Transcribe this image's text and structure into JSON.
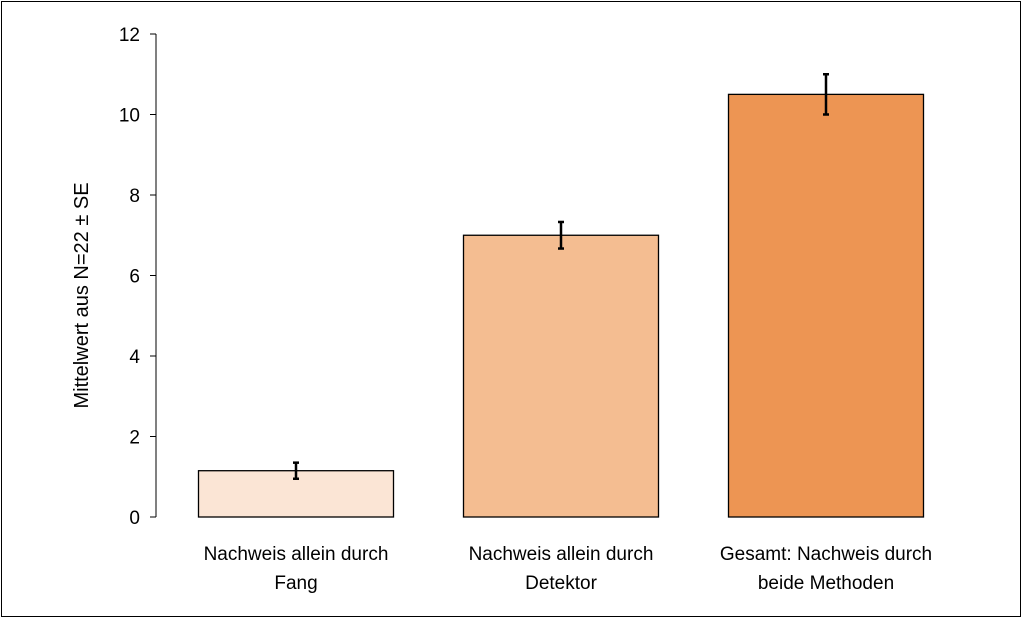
{
  "chart_data": {
    "type": "bar",
    "title": "",
    "xlabel": "",
    "ylabel": "Mittelwert aus N=22 ± SE",
    "categories": [
      [
        "Nachweis allein durch",
        "Fang"
      ],
      [
        "Nachweis allein durch",
        "Detektor"
      ],
      [
        "Gesamt: Nachweis durch",
        "beide Methoden"
      ]
    ],
    "values": [
      1.15,
      7.0,
      10.5
    ],
    "errors": [
      0.2,
      0.33,
      0.5
    ],
    "colors": [
      "#fbe5d5",
      "#f4bd91",
      "#ed9553"
    ],
    "ylim": [
      0,
      12
    ],
    "yticks": [
      0,
      2,
      4,
      6,
      8,
      10,
      12
    ],
    "grid": false,
    "legend": "none"
  }
}
